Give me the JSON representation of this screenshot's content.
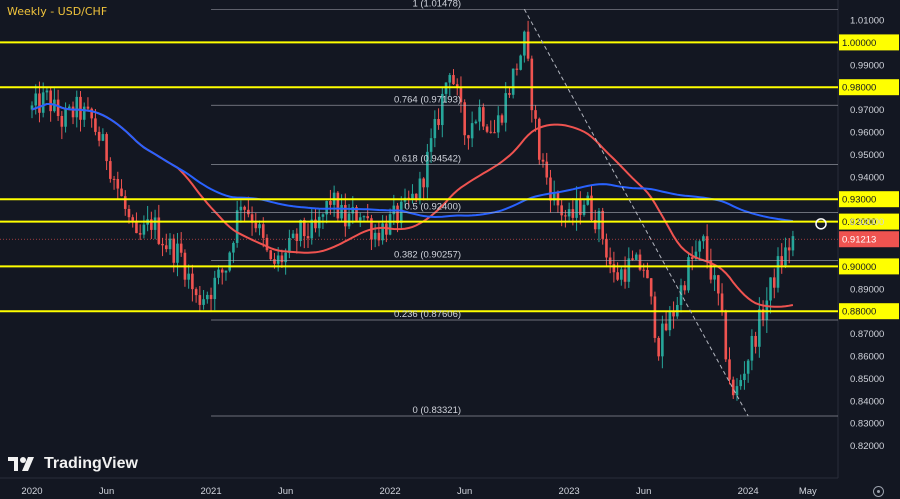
{
  "title": "Weekly - USD/CHF",
  "brand": {
    "name": "TradingView"
  },
  "icons": {
    "logo": "tradingview-logo-icon",
    "settings": "settings-icon"
  },
  "colors": {
    "background": "#131722",
    "bull": "#26a69a",
    "bear": "#ef5350",
    "ma_fast": "#ef5350",
    "ma_slow": "#2962ff",
    "level": "#ffff00",
    "fib": "#b2b5be",
    "price_tag": "#ef5350",
    "text": "#d1d4dc"
  },
  "chart_data": {
    "type": "candlestick",
    "symbol": "USD/CHF",
    "timeframe": "Weekly",
    "ylim": [
      0.818,
      1.0145
    ],
    "y_ticks": [
      "1.01000",
      "0.99000",
      "0.97000",
      "0.96000",
      "0.95000",
      "0.94000",
      "0.92000",
      "0.89000",
      "0.87000",
      "0.86000",
      "0.85000",
      "0.84000",
      "0.83000",
      "0.82000"
    ],
    "x_ticks": [
      "2020",
      "Jun",
      "2021",
      "Jun",
      "2022",
      "Jun",
      "2023",
      "Jun",
      "2024",
      "May"
    ],
    "current_price": "0.91213",
    "current_price_value": 0.91213,
    "horizontal_levels": [
      {
        "label": "1.00000",
        "value": 1.0
      },
      {
        "label": "0.98000",
        "value": 0.98
      },
      {
        "label": "0.93000",
        "value": 0.93
      },
      {
        "label": "0.92000",
        "value": 0.92
      },
      {
        "label": "0.90000",
        "value": 0.9
      },
      {
        "label": "0.88000",
        "value": 0.88
      }
    ],
    "fibonacci": [
      {
        "label": "1 (1.01478)",
        "value": 1.01478
      },
      {
        "label": "0.764 (0.97193)",
        "value": 0.97193
      },
      {
        "label": "0.618 (0.94542)",
        "value": 0.94542
      },
      {
        "label": "0.5 (0.92400)",
        "value": 0.924
      },
      {
        "label": "0.382 (0.90257)",
        "value": 0.90257
      },
      {
        "label": "0.236 (0.87606)",
        "value": 0.87606
      },
      {
        "label": "0 (0.83321)",
        "value": 0.83321
      }
    ],
    "price_path": [
      [
        "2020-01",
        0.97
      ],
      [
        "2020-02",
        0.975
      ],
      [
        "2020-03",
        0.965
      ],
      [
        "2020-04",
        0.97
      ],
      [
        "2020-05",
        0.965
      ],
      [
        "2020-06",
        0.95
      ],
      [
        "2020-07",
        0.93
      ],
      [
        "2020-08",
        0.91
      ],
      [
        "2020-09",
        0.92
      ],
      [
        "2020-10",
        0.91
      ],
      [
        "2020-11",
        0.905
      ],
      [
        "2020-12",
        0.885
      ],
      [
        "2021-01",
        0.89
      ],
      [
        "2021-02",
        0.9
      ],
      [
        "2021-03",
        0.93
      ],
      [
        "2021-04",
        0.92
      ],
      [
        "2021-05",
        0.9
      ],
      [
        "2021-06",
        0.905
      ],
      [
        "2021-07",
        0.915
      ],
      [
        "2021-08",
        0.915
      ],
      [
        "2021-09",
        0.93
      ],
      [
        "2021-10",
        0.92
      ],
      [
        "2021-11",
        0.925
      ],
      [
        "2021-12",
        0.915
      ],
      [
        "2022-01",
        0.92
      ],
      [
        "2022-02",
        0.925
      ],
      [
        "2022-03",
        0.935
      ],
      [
        "2022-04",
        0.96
      ],
      [
        "2022-05",
        0.99
      ],
      [
        "2022-06",
        0.96
      ],
      [
        "2022-07",
        0.97
      ],
      [
        "2022-08",
        0.96
      ],
      [
        "2022-09",
        0.98
      ],
      [
        "2022-10",
        1.0
      ],
      [
        "2022-11",
        0.95
      ],
      [
        "2022-12",
        0.93
      ],
      [
        "2023-01",
        0.92
      ],
      [
        "2023-02",
        0.93
      ],
      [
        "2023-03",
        0.92
      ],
      [
        "2023-04",
        0.895
      ],
      [
        "2023-05",
        0.9
      ],
      [
        "2023-06",
        0.9
      ],
      [
        "2023-07",
        0.865
      ],
      [
        "2023-08",
        0.88
      ],
      [
        "2023-09",
        0.9
      ],
      [
        "2023-10",
        0.91
      ],
      [
        "2023-11",
        0.885
      ],
      [
        "2023-12",
        0.84
      ],
      [
        "2024-01",
        0.86
      ],
      [
        "2024-02",
        0.88
      ],
      [
        "2024-03",
        0.9
      ],
      [
        "2024-04",
        0.912
      ]
    ]
  }
}
